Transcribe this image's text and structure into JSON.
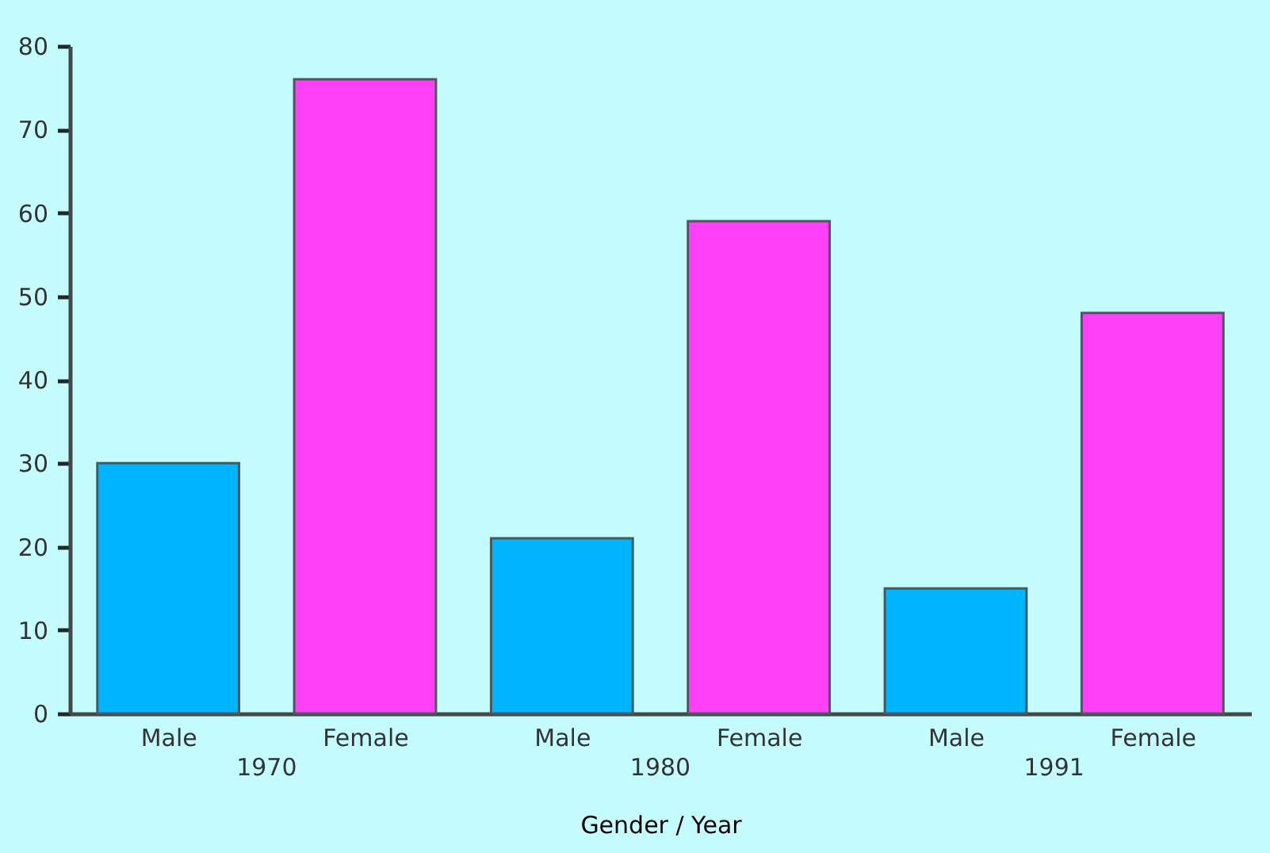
{
  "chart_data": {
    "type": "bar",
    "xlabel": "Gender / Year",
    "categories": [
      "Male",
      "Female",
      "Male",
      "Female",
      "Male",
      "Female"
    ],
    "values": [
      30,
      76,
      21,
      59,
      15,
      48
    ],
    "colors": [
      "#00b4ff",
      "#ff40f8",
      "#00b4ff",
      "#ff40f8",
      "#00b4ff",
      "#ff40f8"
    ],
    "annotations": [
      "1970",
      "1980",
      "1991"
    ],
    "ylim": [
      0,
      80
    ],
    "yticks": [
      0,
      10,
      20,
      30,
      40,
      50,
      60,
      70,
      80
    ],
    "grid": false
  }
}
